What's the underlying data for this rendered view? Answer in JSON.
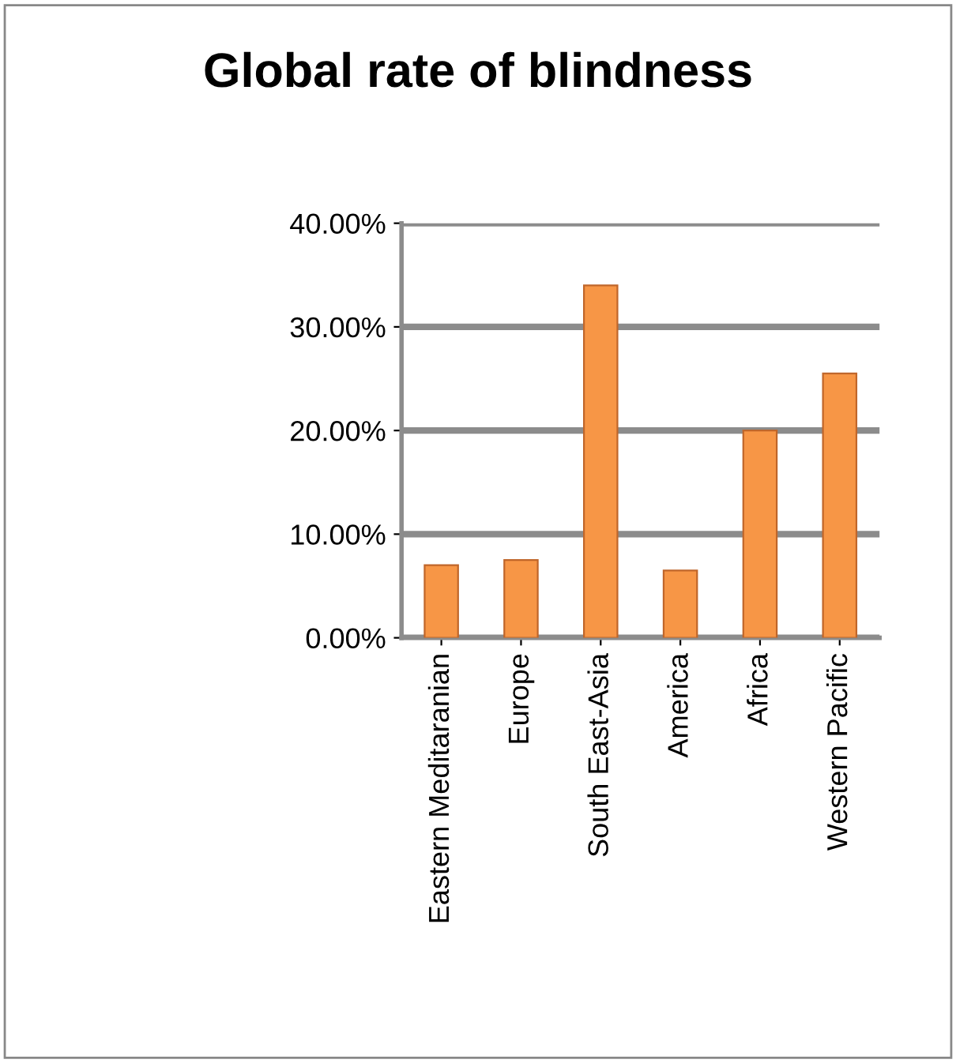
{
  "chart_data": {
    "type": "bar",
    "title": "Global rate of blindness",
    "categories": [
      "Eastern Meditaranian",
      "Europe",
      "South East-Asia",
      "America",
      "Africa",
      "Western Pacific"
    ],
    "values": [
      7,
      7.5,
      34,
      6.5,
      20,
      25.5
    ],
    "color": "#f79646",
    "ylim": [
      0,
      40
    ],
    "yticks": [
      {
        "value": 0,
        "label": "0.00%"
      },
      {
        "value": 10,
        "label": "10.00%"
      },
      {
        "value": 20,
        "label": "20.00%"
      },
      {
        "value": 30,
        "label": "30.00%"
      },
      {
        "value": 40,
        "label": "40.00%"
      }
    ],
    "grid": "y",
    "legend": false
  }
}
